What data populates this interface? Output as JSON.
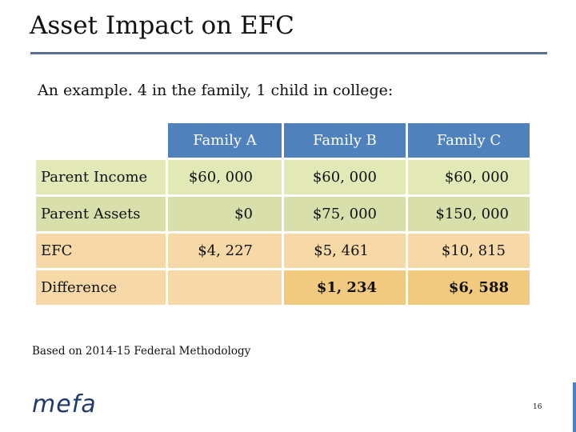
{
  "slide": {
    "title": "Asset Impact on EFC",
    "subtitle": "An example.  4 in the family, 1 child in college:",
    "note": "Based on 2014-15 Federal Methodology",
    "logo": "mefa",
    "page_number": "16"
  },
  "table": {
    "headers": [
      "Family A",
      "Family B",
      "Family C"
    ],
    "rows": [
      {
        "label": "Parent Income",
        "values": [
          "$60, 000",
          "$60, 000",
          "$60, 000"
        ]
      },
      {
        "label": "Parent Assets",
        "values": [
          "$0",
          "$75, 000",
          "$150, 000"
        ]
      },
      {
        "label": "EFC",
        "values": [
          "$4, 227",
          "$5, 461",
          "$10, 815"
        ]
      },
      {
        "label": "Difference",
        "values": [
          "",
          "$1, 234",
          "$6, 588"
        ]
      }
    ]
  },
  "colors": {
    "header_blue": "#4f81bd",
    "rule": "#5a6f93",
    "income_row": "#e2e9b6",
    "assets_row": "#d9dfaa",
    "efc_row": "#f6d9a6",
    "diff_row": "#f1c97f",
    "logo": "#1f3a6b"
  }
}
